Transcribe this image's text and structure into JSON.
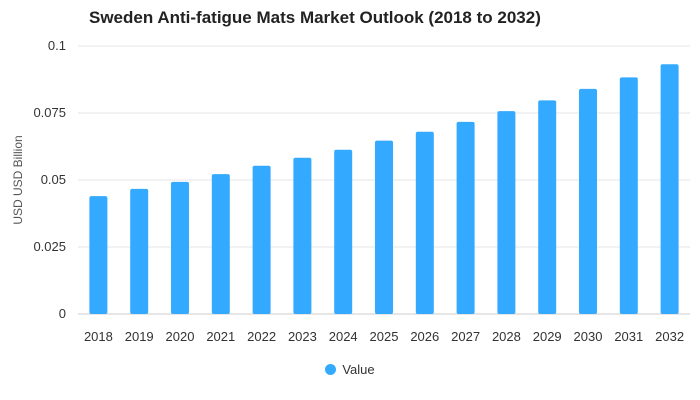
{
  "chart_data": {
    "type": "bar",
    "title": "Sweden Anti-fatigue Mats Market Outlook (2018 to 2032)",
    "xlabel": "",
    "ylabel": "USD USD Billion",
    "categories": [
      "2018",
      "2019",
      "2020",
      "2021",
      "2022",
      "2023",
      "2024",
      "2025",
      "2026",
      "2027",
      "2028",
      "2029",
      "2030",
      "2031",
      "2032"
    ],
    "series": [
      {
        "name": "Value",
        "values": [
          0.044,
          0.0467,
          0.0493,
          0.0522,
          0.0553,
          0.0583,
          0.0613,
          0.0647,
          0.068,
          0.0717,
          0.0757,
          0.0797,
          0.084,
          0.0883,
          0.0932
        ]
      }
    ],
    "ylim": [
      0,
      0.1
    ],
    "yticks": [
      "0",
      "0.025",
      "0.05",
      "0.075",
      "0.1"
    ],
    "yticks_values": [
      0,
      0.025,
      0.05,
      0.075,
      0.1
    ],
    "grid": true,
    "legend_position": "bottom",
    "colors": {
      "bar": "#33aaff",
      "grid": "#e6e6e6",
      "axis": "#cccccc",
      "text": "#333333"
    }
  }
}
